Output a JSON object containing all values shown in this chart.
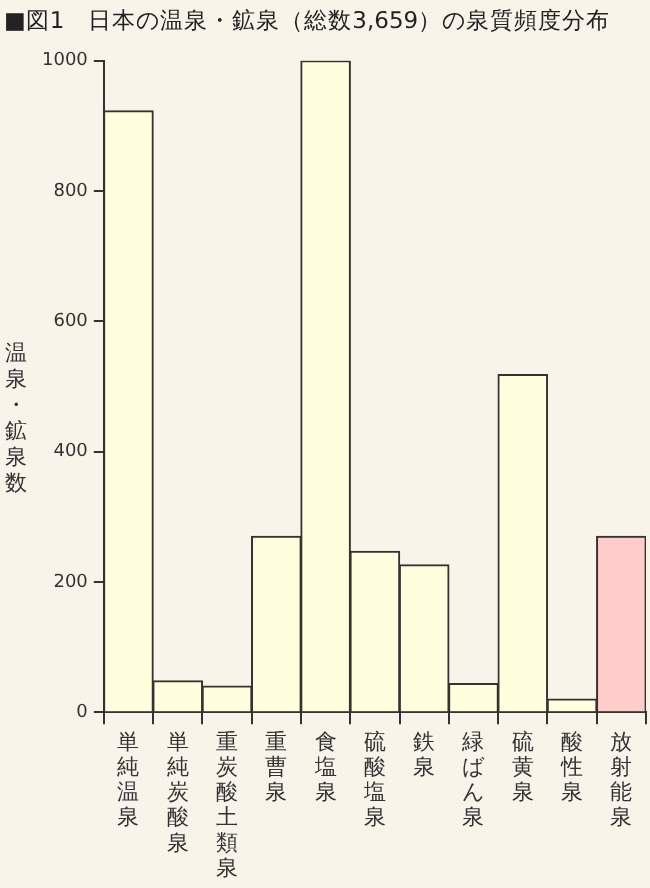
{
  "chart_data": {
    "type": "bar",
    "title": "■図1　日本の温泉・鉱泉（総数3,659）の泉質頻度分布",
    "ylabel": "温泉・鉱泉数",
    "categories": [
      "単純温泉",
      "単純炭酸泉",
      "重炭酸土類泉",
      "重曹泉",
      "食塩泉",
      "硫酸塩泉",
      "鉄泉",
      "緑ばん泉",
      "硫黄泉",
      "酸性泉",
      "放射能泉"
    ],
    "values": [
      923,
      48,
      40,
      270,
      1000,
      247,
      226,
      44,
      518,
      20,
      270
    ],
    "colors": [
      "#ffffdd",
      "#ffffdd",
      "#ffffdd",
      "#ffffdd",
      "#ffffdd",
      "#ffffdd",
      "#ffffdd",
      "#ffffdd",
      "#ffffdd",
      "#ffffdd",
      "#ffcccc"
    ],
    "ylim": [
      0,
      1000
    ],
    "yticks": [
      0,
      200,
      400,
      600,
      800,
      1000
    ],
    "grid": false,
    "legend": false
  }
}
